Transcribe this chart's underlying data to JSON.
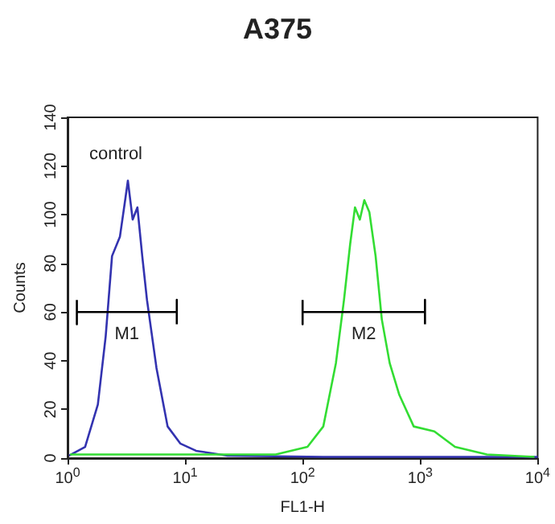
{
  "chart_data": {
    "type": "line",
    "title": "A375",
    "xlabel": "FL1-H",
    "ylabel": "Counts",
    "log": "x",
    "xlim": [
      1,
      10000
    ],
    "xticks": [
      {
        "value": 1,
        "label": "10$^{0}$"
      },
      {
        "value": 10,
        "label": "10$^{1}$"
      },
      {
        "value": 100,
        "label": "10$^{2}$"
      },
      {
        "value": 1000,
        "label": "10$^{3}$"
      },
      {
        "value": 10000,
        "label": "10$^{4}$"
      }
    ],
    "ylim": [
      0,
      140
    ],
    "yticks": [
      0,
      20,
      40,
      60,
      80,
      100,
      120,
      140
    ],
    "grid": false,
    "marker": "none",
    "series": [
      {
        "color": "#3333b0",
        "x": [
          1.03,
          1.41,
          1.81,
          2.11,
          2.39,
          2.79,
          3.07,
          3.26,
          3.58,
          3.93,
          4.32,
          4.74,
          5.71,
          7.1,
          9.1,
          12.4,
          23,
          150,
          3380,
          10000
        ],
        "values": [
          1,
          4.6,
          22,
          50,
          83,
          91,
          105,
          114,
          98,
          103,
          83,
          65,
          37,
          13,
          6,
          3,
          1,
          0.5,
          0.5,
          0.5
        ]
      },
      {
        "color": "#33dd33",
        "x": [
          1.05,
          10,
          50,
          59,
          110,
          150,
          192,
          225,
          254,
          279,
          307,
          335,
          370,
          418,
          472,
          551,
          665,
          882,
          1320,
          1980,
          3700,
          9400
        ],
        "values": [
          1.5,
          1.5,
          1.5,
          1.5,
          4.6,
          13,
          39,
          65,
          88,
          103,
          98,
          106,
          101,
          83,
          57,
          39,
          26,
          13,
          11,
          4.6,
          1.5,
          0.5
        ]
      },
      {
        "color": "#000000",
        "x": [
          1.2,
          1.2,
          1.2,
          8.5,
          8.5,
          8.5
        ],
        "values": [
          65,
          55,
          60,
          60,
          65,
          55
        ]
      },
      {
        "color": "#000000",
        "x": [
          100,
          100,
          100,
          1100,
          1100,
          1100
        ],
        "values": [
          65,
          55,
          60,
          60,
          65,
          55
        ]
      }
    ],
    "annotations": [
      "control",
      "M1",
      "M2"
    ]
  }
}
